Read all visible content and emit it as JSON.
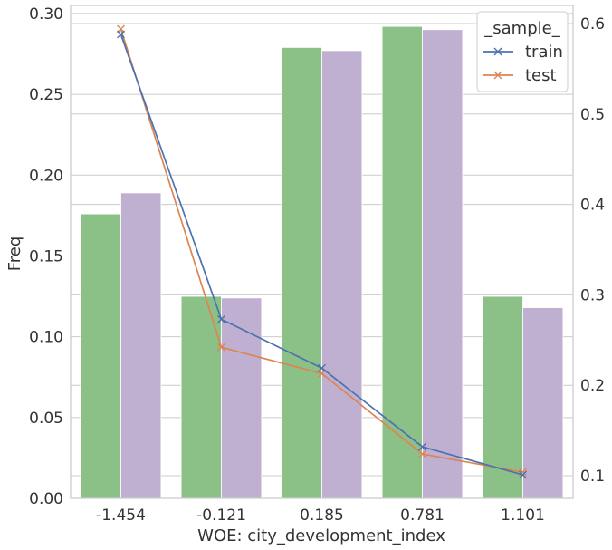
{
  "chart_data": {
    "type": "bar",
    "xlabel": "WOE: city_development_index",
    "ylabel": "Freq",
    "categories": [
      "-1.454",
      "-0.121",
      "0.185",
      "0.781",
      "1.101"
    ],
    "bar_series": [
      {
        "color": "#8bc087",
        "values": [
          0.176,
          0.125,
          0.279,
          0.292,
          0.125
        ]
      },
      {
        "color": "#bfafd0",
        "values": [
          0.189,
          0.124,
          0.277,
          0.29,
          0.118
        ]
      }
    ],
    "ylim": [
      0,
      0.305
    ],
    "yticks": [
      "0.00",
      "0.05",
      "0.10",
      "0.15",
      "0.20",
      "0.25",
      "0.30"
    ],
    "y2lim": [
      0.075,
      0.62
    ],
    "y2ticks": [
      "0.1",
      "0.2",
      "0.3",
      "0.4",
      "0.5",
      "0.6"
    ],
    "line_series": [
      {
        "name": "train",
        "color": "#4c72b0",
        "marker": "x",
        "values": [
          0.588,
          0.273,
          0.219,
          0.132,
          0.101
        ]
      },
      {
        "name": "test",
        "color": "#dd8452",
        "marker": "x",
        "values": [
          0.594,
          0.242,
          0.213,
          0.124,
          0.104
        ]
      }
    ],
    "legend": {
      "title": "_sample_",
      "placement": "top-right"
    },
    "grid": true
  }
}
